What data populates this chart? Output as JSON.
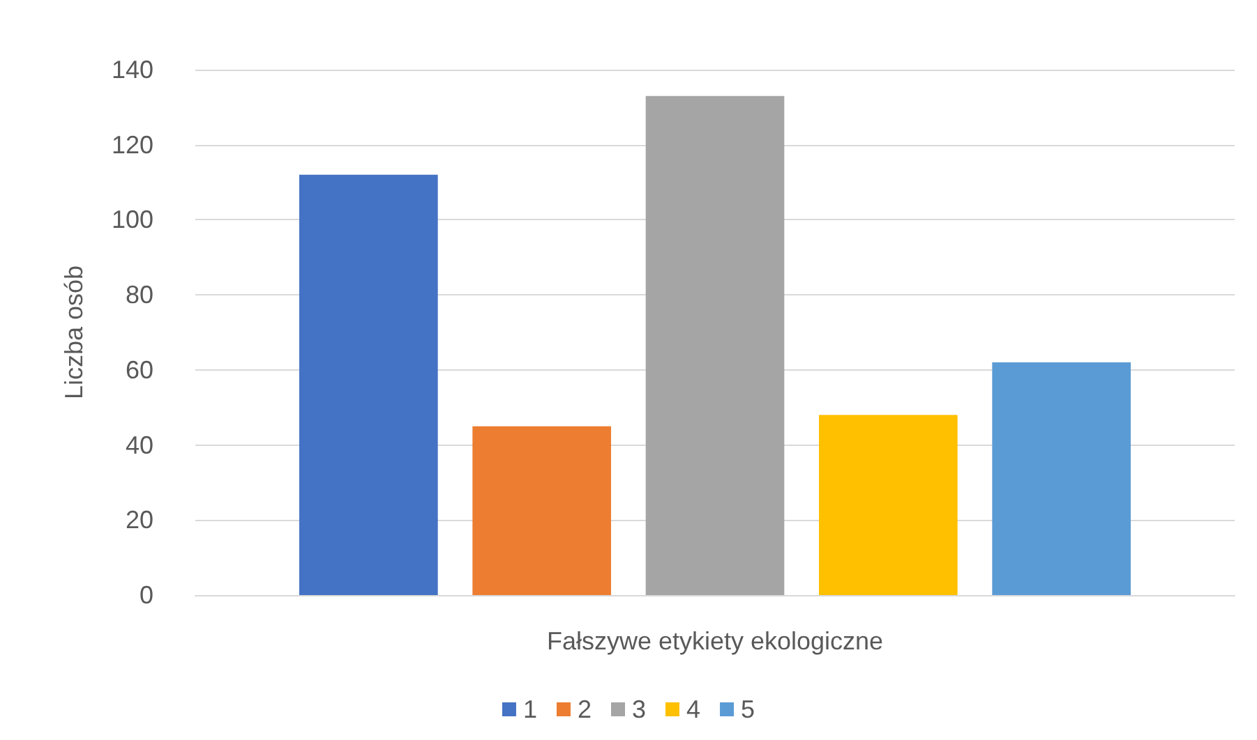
{
  "chart_data": {
    "type": "bar",
    "ylabel": "Liczba osób",
    "categories": [
      "Fałszywe etykiety ekologiczne"
    ],
    "series": [
      {
        "name": "1",
        "color": "#4472c4",
        "values": [
          112
        ]
      },
      {
        "name": "2",
        "color": "#ed7d31",
        "values": [
          45
        ]
      },
      {
        "name": "3",
        "color": "#a5a5a5",
        "values": [
          133
        ]
      },
      {
        "name": "4",
        "color": "#ffc000",
        "values": [
          48
        ]
      },
      {
        "name": "5",
        "color": "#5b9bd5",
        "values": [
          62
        ]
      }
    ],
    "ylim": [
      0,
      140
    ],
    "yticks": [
      0,
      20,
      40,
      60,
      80,
      100,
      120,
      140
    ],
    "grid": "y",
    "legend": "bottom"
  }
}
